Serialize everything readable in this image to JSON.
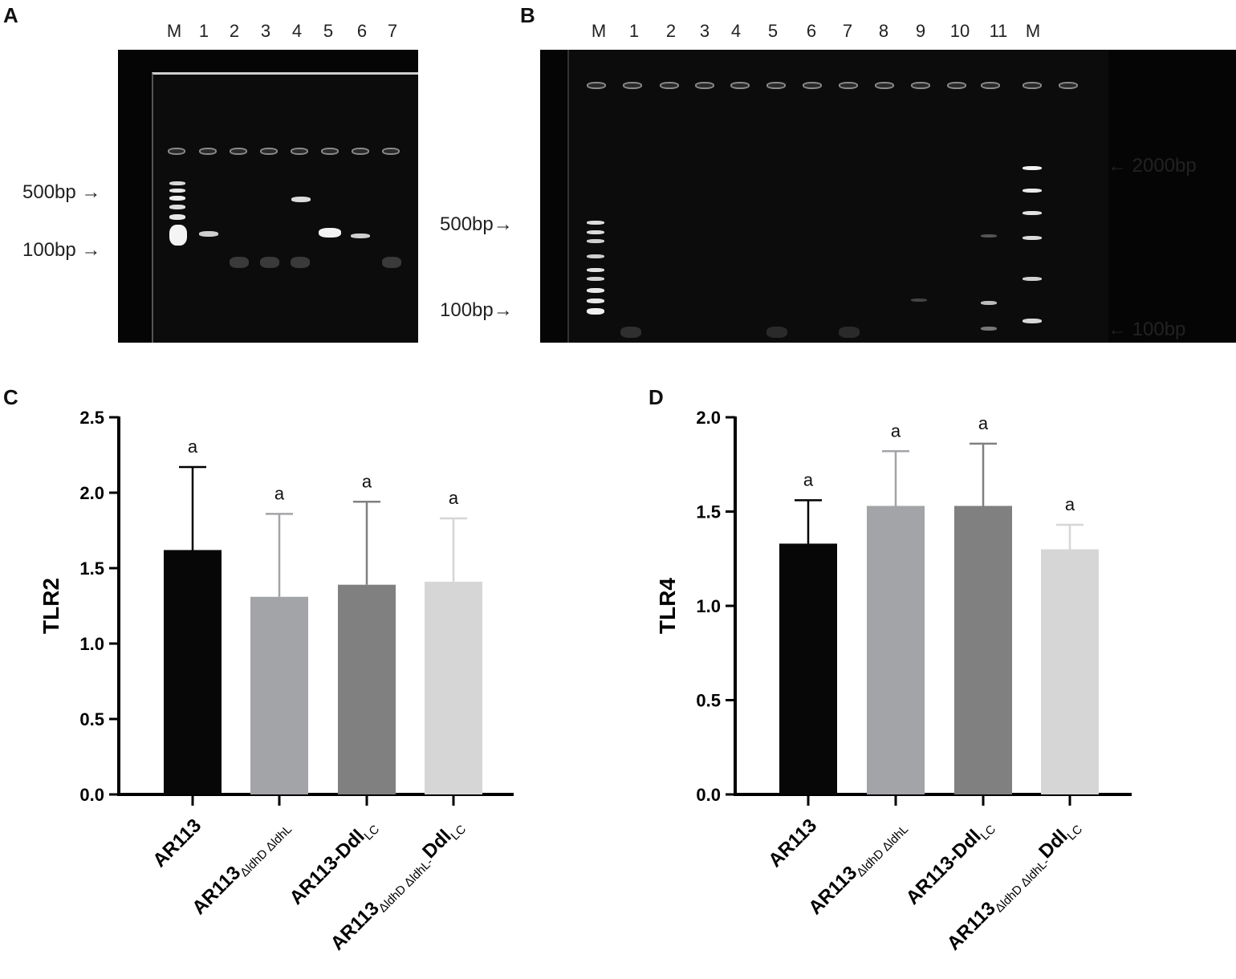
{
  "panel_a": {
    "letter": "A",
    "lanes": [
      "M",
      "1",
      "2",
      "3",
      "4",
      "5",
      "6",
      "7"
    ],
    "markers": [
      "500bp →",
      "100bp →"
    ]
  },
  "panel_b": {
    "letter": "B",
    "lanes": [
      "M",
      "1",
      "2",
      "3",
      "4",
      "5",
      "6",
      "7",
      "8",
      "9",
      "10",
      "11",
      "M"
    ],
    "markers_left": [
      "500bp→",
      "100bp→"
    ],
    "markers_right": [
      "← 2000bp",
      "← 100bp"
    ]
  },
  "chart_data": [
    {
      "panel": "C",
      "type": "bar",
      "ylabel": "TLR2",
      "ylim": [
        0,
        2.5
      ],
      "yticks": [
        "0.0",
        "0.5",
        "1.0",
        "1.5",
        "2.0",
        "2.5"
      ],
      "categories": [
        "AR113",
        "AR113 ΔldhD ΔldhL",
        "AR113-Ddl LC",
        "AR113 ΔldhD ΔldhL-Ddl LC"
      ],
      "values": [
        1.62,
        1.31,
        1.39,
        1.41
      ],
      "errors": [
        0.55,
        0.55,
        0.55,
        0.42
      ],
      "significance": [
        "a",
        "a",
        "a",
        "a"
      ],
      "colors": [
        "#070707",
        "#a3a4a8",
        "#808080",
        "#d6d6d6"
      ],
      "errorbar_colors": [
        "#000000",
        "#a3a4a8",
        "#808080",
        "#d6d6d6"
      ]
    },
    {
      "panel": "D",
      "type": "bar",
      "ylabel": "TLR4",
      "ylim": [
        0,
        2.0
      ],
      "yticks": [
        "0.0",
        "0.5",
        "1.0",
        "1.5",
        "2.0"
      ],
      "categories": [
        "AR113",
        "AR113 ΔldhD ΔldhL",
        "AR113-Ddl LC",
        "AR113 ΔldhD ΔldhL-Ddl LC"
      ],
      "values": [
        1.33,
        1.53,
        1.53,
        1.3
      ],
      "errors": [
        0.23,
        0.29,
        0.33,
        0.13
      ],
      "significance": [
        "a",
        "a",
        "a",
        "a"
      ],
      "colors": [
        "#070707",
        "#a3a4a8",
        "#808080",
        "#d6d6d6"
      ],
      "errorbar_colors": [
        "#000000",
        "#a3a4a8",
        "#808080",
        "#d6d6d6"
      ]
    }
  ],
  "category_labels": [
    {
      "main": "AR113",
      "sub": "",
      "tail": "",
      "tail_sub": ""
    },
    {
      "main": "AR113",
      "sub": "ΔldhD ΔldhL",
      "tail": "",
      "tail_sub": ""
    },
    {
      "main": "AR113-Ddl",
      "sub": "LC",
      "tail": "",
      "tail_sub": ""
    },
    {
      "main": "AR113",
      "sub": "ΔldhD ΔldhL-",
      "tail": "Ddl",
      "tail_sub": "LC"
    }
  ],
  "panel_c_letter": "C",
  "panel_d_letter": "D"
}
